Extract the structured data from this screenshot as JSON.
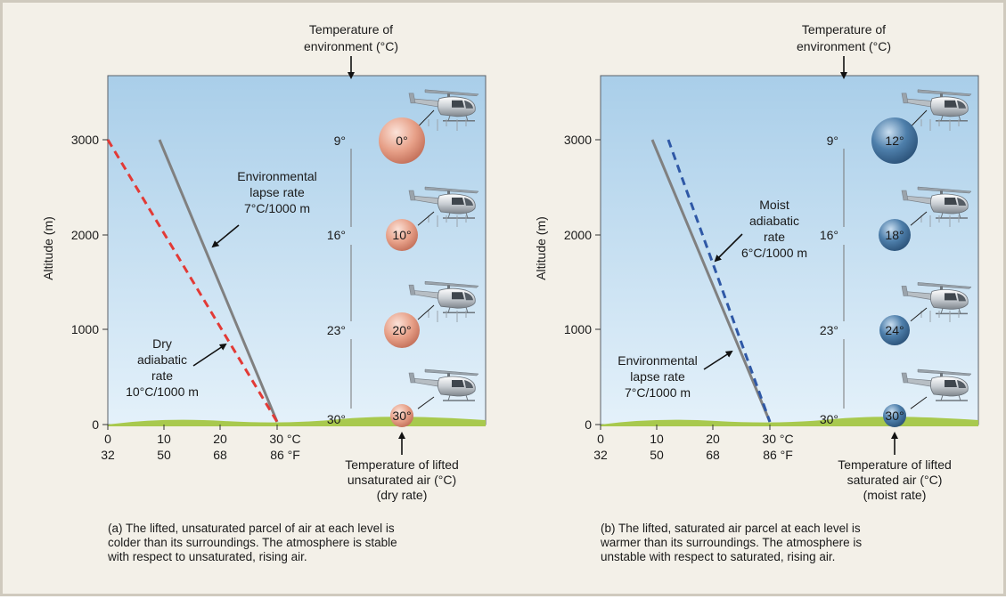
{
  "colors": {
    "sky_top": "#a9cee9",
    "sky_bottom": "#e4f1fa",
    "ground": "#a8c94e",
    "environmental_line": "#808080",
    "dry_line": "#e23a36",
    "moist_line": "#2f58a6",
    "dry_parcel": "#e7a088",
    "moist_parcel": "#4e7fab"
  },
  "icons": [
    "helicopter-icon",
    "air-parcel-icon",
    "arrow-icon"
  ],
  "panels": [
    {
      "env_temp_label": [
        "Temperature of",
        "environment (°C)"
      ],
      "y_axis_label": "Altitude (m)",
      "y_ticks": [
        "3000",
        "2000",
        "1000",
        "0"
      ],
      "x_ticks_c": [
        "0",
        "10",
        "20",
        "30 °C"
      ],
      "x_ticks_f": [
        "32",
        "50",
        "68",
        "86 °F"
      ],
      "env_temps": [
        "9°",
        "16°",
        "23°",
        "30°"
      ],
      "parcel_temps": [
        "0°",
        "10°",
        "20°",
        "30°"
      ],
      "parcel_label": [
        "Temperature of lifted",
        "unsaturated air (°C)",
        "(dry rate)"
      ],
      "label_env": [
        "Environmental",
        "lapse rate",
        "7°C/1000 m"
      ],
      "label_adiabatic": [
        "Dry",
        "adiabatic",
        "rate",
        "10°C/1000 m"
      ],
      "caption": [
        "(a) The lifted, unsaturated parcel of air at each level is",
        "colder than its surroundings. The atmosphere is stable",
        "with respect to unsaturated, rising air."
      ]
    },
    {
      "env_temp_label": [
        "Temperature of",
        "environment (°C)"
      ],
      "y_axis_label": "Altitude (m)",
      "y_ticks": [
        "3000",
        "2000",
        "1000",
        "0"
      ],
      "x_ticks_c": [
        "0",
        "10",
        "20",
        "30 °C"
      ],
      "x_ticks_f": [
        "32",
        "50",
        "68",
        "86 °F"
      ],
      "env_temps": [
        "9°",
        "16°",
        "23°",
        "30°"
      ],
      "parcel_temps": [
        "12°",
        "18°",
        "24°",
        "30°"
      ],
      "parcel_label": [
        "Temperature of lifted",
        "saturated air (°C)",
        "(moist rate)"
      ],
      "label_env": [
        "Environmental",
        "lapse rate",
        "7°C/1000 m"
      ],
      "label_adiabatic": [
        "Moist",
        "adiabatic",
        "rate",
        "6°C/1000 m"
      ],
      "caption": [
        "(b) The lifted, saturated air parcel at each level is",
        "warmer than its surroundings. The atmosphere is",
        "unstable with respect to saturated, rising air."
      ]
    }
  ]
}
